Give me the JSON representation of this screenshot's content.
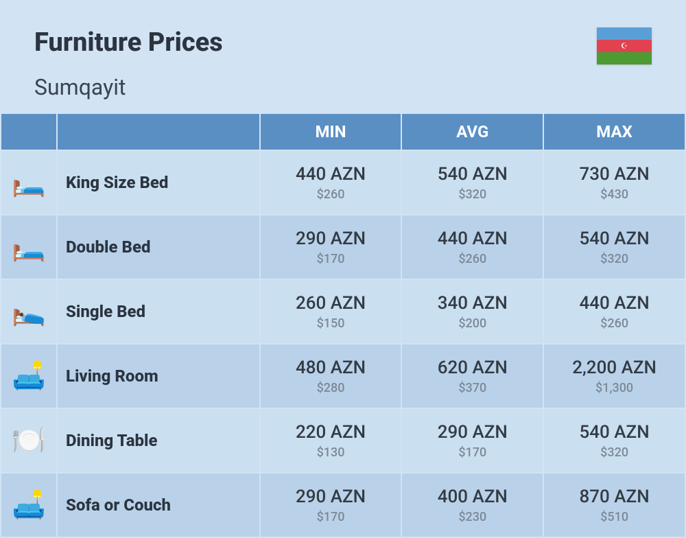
{
  "header": {
    "title": "Furniture Prices",
    "subtitle": "Sumqayit",
    "flag_colors": {
      "top": "#5a9fd8",
      "middle": "#e24250",
      "bottom": "#4e9a33"
    }
  },
  "table": {
    "columns": [
      "MIN",
      "AVG",
      "MAX"
    ],
    "rows": [
      {
        "icon": "🛏️",
        "name": "King Size Bed",
        "min": {
          "primary": "440 AZN",
          "secondary": "$260"
        },
        "avg": {
          "primary": "540 AZN",
          "secondary": "$320"
        },
        "max": {
          "primary": "730 AZN",
          "secondary": "$430"
        }
      },
      {
        "icon": "🛏️",
        "name": "Double Bed",
        "min": {
          "primary": "290 AZN",
          "secondary": "$170"
        },
        "avg": {
          "primary": "440 AZN",
          "secondary": "$260"
        },
        "max": {
          "primary": "540 AZN",
          "secondary": "$320"
        }
      },
      {
        "icon": "🛌",
        "name": "Single Bed",
        "min": {
          "primary": "260 AZN",
          "secondary": "$150"
        },
        "avg": {
          "primary": "340 AZN",
          "secondary": "$200"
        },
        "max": {
          "primary": "440 AZN",
          "secondary": "$260"
        }
      },
      {
        "icon": "🛋️",
        "name": "Living Room",
        "min": {
          "primary": "480 AZN",
          "secondary": "$280"
        },
        "avg": {
          "primary": "620 AZN",
          "secondary": "$370"
        },
        "max": {
          "primary": "2,200 AZN",
          "secondary": "$1,300"
        }
      },
      {
        "icon": "🍽️",
        "name": "Dining Table",
        "min": {
          "primary": "220 AZN",
          "secondary": "$130"
        },
        "avg": {
          "primary": "290 AZN",
          "secondary": "$170"
        },
        "max": {
          "primary": "540 AZN",
          "secondary": "$320"
        }
      },
      {
        "icon": "🛋️",
        "name": "Sofa or Couch",
        "min": {
          "primary": "290 AZN",
          "secondary": "$170"
        },
        "avg": {
          "primary": "400 AZN",
          "secondary": "$230"
        },
        "max": {
          "primary": "870 AZN",
          "secondary": "$510"
        }
      }
    ]
  },
  "colors": {
    "page_bg": "#d2e3f3",
    "header_bg": "#5a8fc4",
    "row_odd": "#cadff0",
    "row_even": "#b9d2e9",
    "text_primary": "#2b3440",
    "text_value": "#333b44",
    "text_secondary": "#7c8998"
  }
}
